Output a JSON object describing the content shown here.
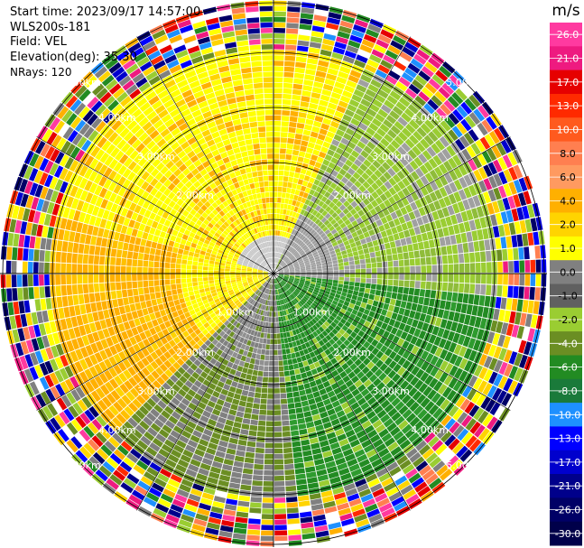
{
  "header": {
    "start_time": "Start time: 2023/09/17 14:57:00",
    "instrument": "WLS200s-181",
    "field": "Field: VEL",
    "elevation": "Elevation(deg): 35.30",
    "nrays": "NRays: 120"
  },
  "plot": {
    "range_ring_labels": [
      "1.00km",
      "2.00km",
      "3.00km",
      "4.00km",
      "5.00km"
    ]
  },
  "colorbar": {
    "unit": "m/s",
    "ticks": [
      "26.0",
      "21.0",
      "17.0",
      "13.0",
      "10.0",
      "8.0",
      "6.0",
      "4.0",
      "2.0",
      "1.0",
      "0.0",
      "-1.0",
      "-2.0",
      "-4.0",
      "-6.0",
      "-8.0",
      "-10.0",
      "-13.0",
      "-17.0",
      "-21.0",
      "-26.0",
      "-30.0"
    ],
    "colors": [
      "#ff3aa0",
      "#ee1a80",
      "#e60000",
      "#ff2a00",
      "#ff5a1e",
      "#ff7f50",
      "#ff9a60",
      "#ffb000",
      "#ffd400",
      "#ffff00",
      "#808080",
      "#606060",
      "#9acd32",
      "#6b8e23",
      "#228b22",
      "#1a7a3a",
      "#1e90ff",
      "#0000ff",
      "#0000cd",
      "#00008b",
      "#000066",
      "#00004a"
    ],
    "outer_colors": [
      "#ff3aa0",
      "#ee1a80",
      "#e60000",
      "#ff2a00",
      "#ff7f50",
      "#ffb000",
      "#ffd400",
      "#ffff00",
      "#808080",
      "#9acd32",
      "#6b8e23",
      "#228b22",
      "#1e90ff",
      "#0000ff",
      "#0000cd",
      "#00008b",
      "#000066",
      "#ffffff"
    ]
  }
}
